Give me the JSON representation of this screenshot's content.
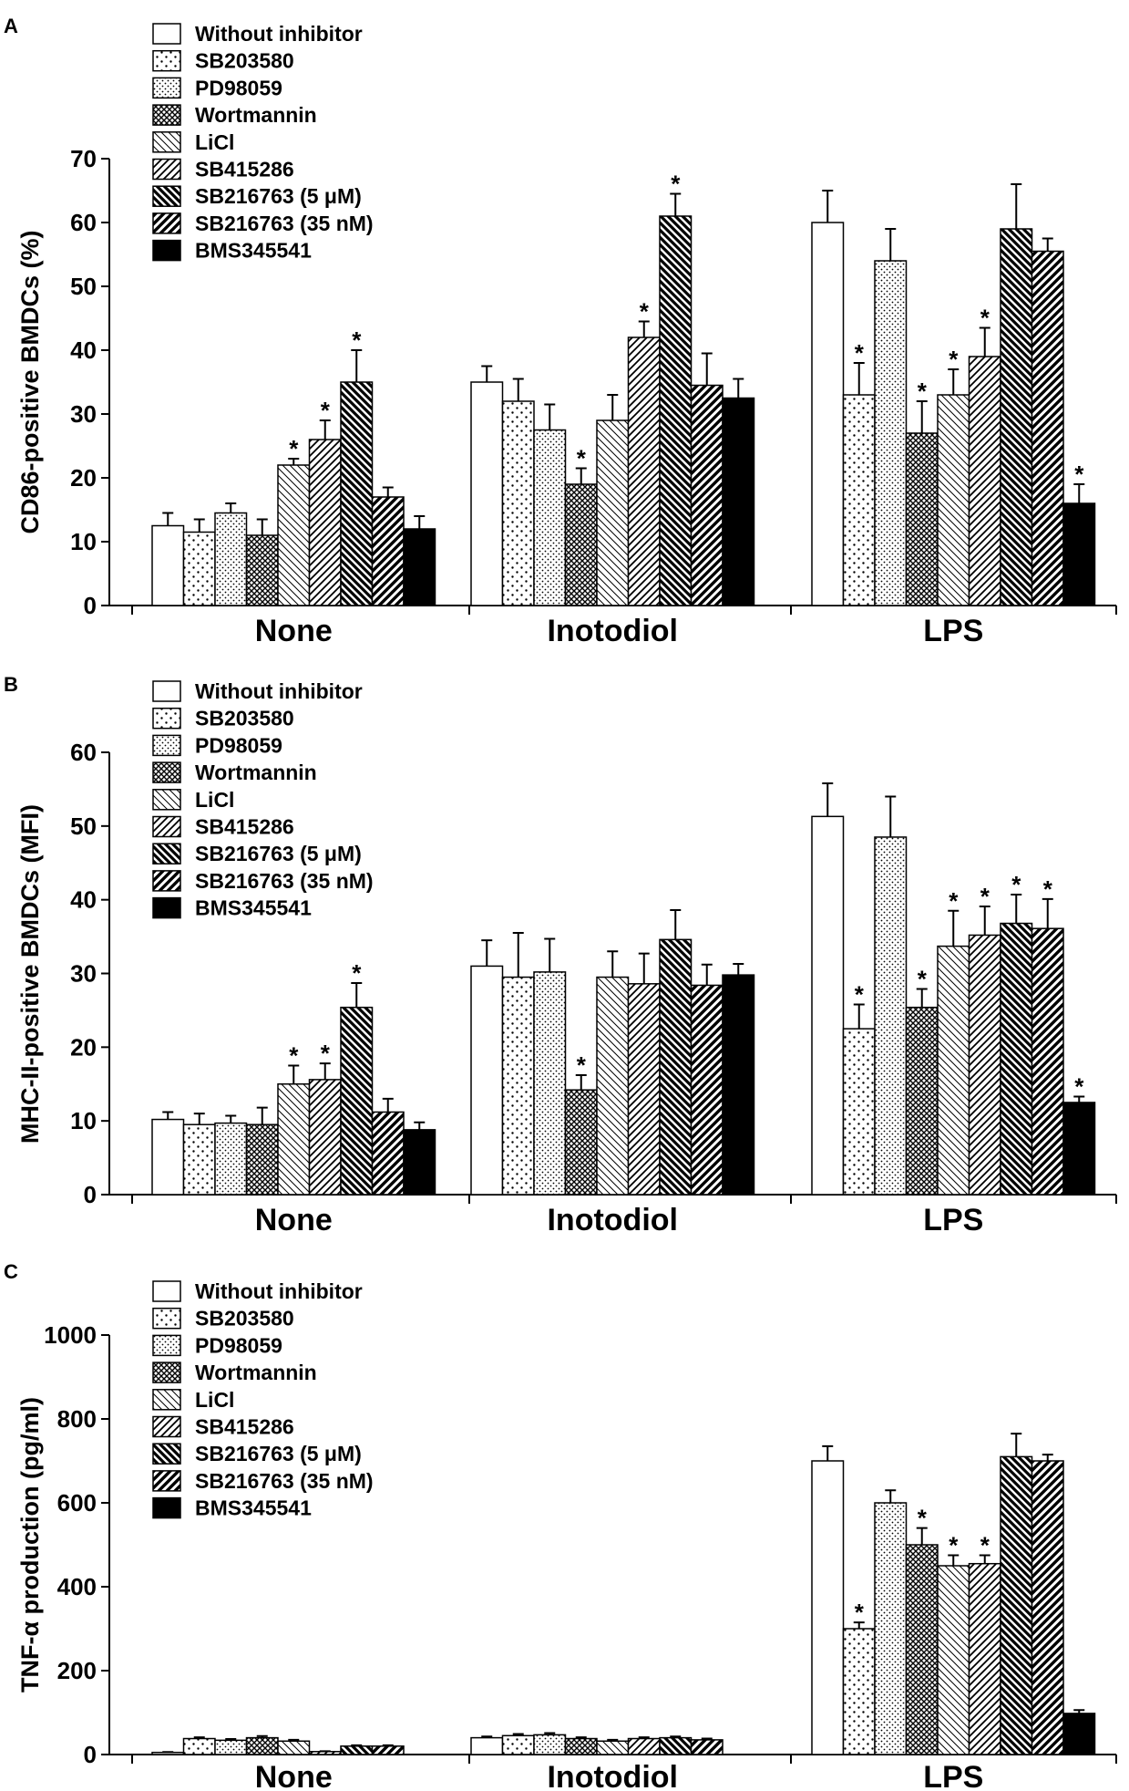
{
  "chart_data": [
    {
      "type": "bar",
      "panel": "A",
      "ylabel": "CD86-positive BMDCs (%)",
      "ylim": [
        0,
        70
      ],
      "yticks": [
        0,
        10,
        20,
        30,
        40,
        50,
        60,
        70
      ],
      "categories": [
        "None",
        "Inotodiol",
        "LPS"
      ],
      "series": [
        {
          "name": "Without inhibitor",
          "values": [
            12.5,
            35,
            60
          ],
          "errors": [
            2,
            2.5,
            5
          ],
          "sig": [
            false,
            false,
            false
          ]
        },
        {
          "name": "SB203580",
          "values": [
            11.5,
            32,
            33
          ],
          "errors": [
            2,
            3.5,
            5
          ],
          "sig": [
            false,
            false,
            true
          ]
        },
        {
          "name": "PD98059",
          "values": [
            14.5,
            27.5,
            54
          ],
          "errors": [
            1.5,
            4,
            5
          ],
          "sig": [
            false,
            false,
            false
          ]
        },
        {
          "name": "Wortmannin",
          "values": [
            11,
            19,
            27
          ],
          "errors": [
            2.5,
            2.5,
            5
          ],
          "sig": [
            false,
            true,
            true
          ]
        },
        {
          "name": "LiCl",
          "values": [
            22,
            29,
            33
          ],
          "errors": [
            1,
            4,
            4
          ],
          "sig": [
            true,
            false,
            true
          ]
        },
        {
          "name": "SB415286",
          "values": [
            26,
            42,
            39
          ],
          "errors": [
            3,
            2.5,
            4.5
          ],
          "sig": [
            true,
            true,
            true
          ]
        },
        {
          "name": "SB216763 (5 μM)",
          "values": [
            35,
            61,
            59
          ],
          "errors": [
            5,
            3.5,
            7
          ],
          "sig": [
            true,
            true,
            false
          ]
        },
        {
          "name": "SB216763 (35 nM)",
          "values": [
            17,
            34.5,
            55.5
          ],
          "errors": [
            1.5,
            5,
            2
          ],
          "sig": [
            false,
            false,
            false
          ]
        },
        {
          "name": "BMS345541",
          "values": [
            12,
            32.5,
            16
          ],
          "errors": [
            2,
            3,
            3
          ],
          "sig": [
            false,
            false,
            true
          ]
        }
      ]
    },
    {
      "type": "bar",
      "panel": "B",
      "ylabel": "MHC-II-positive BMDCs (MFI)",
      "ylim": [
        0,
        60
      ],
      "yticks": [
        0,
        10,
        20,
        30,
        40,
        50,
        60
      ],
      "categories": [
        "None",
        "Inotodiol",
        "LPS"
      ],
      "series": [
        {
          "name": "Without inhibitor",
          "values": [
            10.2,
            31,
            51.3
          ],
          "errors": [
            1,
            3.5,
            4.5
          ],
          "sig": [
            false,
            false,
            false
          ]
        },
        {
          "name": "SB203580",
          "values": [
            9.5,
            29.5,
            22.5
          ],
          "errors": [
            1.5,
            6,
            3.3
          ],
          "sig": [
            false,
            false,
            true
          ]
        },
        {
          "name": "PD98059",
          "values": [
            9.7,
            30.2,
            48.5
          ],
          "errors": [
            1,
            4.5,
            5.5
          ],
          "sig": [
            false,
            false,
            false
          ]
        },
        {
          "name": "Wortmannin",
          "values": [
            9.5,
            14.2,
            25.4
          ],
          "errors": [
            2.3,
            2,
            2.5
          ],
          "sig": [
            false,
            true,
            true
          ]
        },
        {
          "name": "LiCl",
          "values": [
            15,
            29.5,
            33.7
          ],
          "errors": [
            2.5,
            3.5,
            4.8
          ],
          "sig": [
            true,
            false,
            true
          ]
        },
        {
          "name": "SB415286",
          "values": [
            15.6,
            28.6,
            35.2
          ],
          "errors": [
            2.2,
            4.1,
            3.9
          ],
          "sig": [
            true,
            false,
            true
          ]
        },
        {
          "name": "SB216763 (5 μM)",
          "values": [
            25.4,
            34.6,
            36.8
          ],
          "errors": [
            3.3,
            4,
            3.9
          ],
          "sig": [
            true,
            false,
            true
          ]
        },
        {
          "name": "SB216763 (35 nM)",
          "values": [
            11.2,
            28.4,
            36.1
          ],
          "errors": [
            1.8,
            2.8,
            4
          ],
          "sig": [
            false,
            false,
            true
          ]
        },
        {
          "name": "BMS345541",
          "values": [
            8.8,
            29.8,
            12.5
          ],
          "errors": [
            1,
            1.5,
            0.8
          ],
          "sig": [
            false,
            false,
            true
          ]
        }
      ]
    },
    {
      "type": "bar",
      "panel": "C",
      "ylabel": "TNF-α production (pg/ml)",
      "ylim": [
        0,
        1000
      ],
      "yticks": [
        0,
        200,
        400,
        600,
        800,
        1000
      ],
      "categories": [
        "None",
        "Inotodiol",
        "LPS"
      ],
      "series": [
        {
          "name": "Without inhibitor",
          "values": [
            5,
            40,
            700
          ],
          "errors": [
            1,
            3,
            35
          ],
          "sig": [
            false,
            false,
            false
          ]
        },
        {
          "name": "SB203580",
          "values": [
            38,
            45,
            300
          ],
          "errors": [
            3,
            4,
            15
          ],
          "sig": [
            false,
            false,
            true
          ]
        },
        {
          "name": "PD98059",
          "values": [
            34,
            47,
            600
          ],
          "errors": [
            3,
            4,
            30
          ],
          "sig": [
            false,
            false,
            false
          ]
        },
        {
          "name": "Wortmannin",
          "values": [
            40,
            38,
            500
          ],
          "errors": [
            4,
            3,
            40
          ],
          "sig": [
            false,
            false,
            true
          ]
        },
        {
          "name": "LiCl",
          "values": [
            32,
            32,
            450
          ],
          "errors": [
            3,
            3,
            25
          ],
          "sig": [
            false,
            false,
            true
          ]
        },
        {
          "name": "SB415286",
          "values": [
            7,
            38,
            455
          ],
          "errors": [
            1,
            3,
            20
          ],
          "sig": [
            false,
            false,
            true
          ]
        },
        {
          "name": "SB216763 (5 μM)",
          "values": [
            20,
            40,
            710
          ],
          "errors": [
            2,
            3,
            55
          ],
          "sig": [
            false,
            false,
            false
          ]
        },
        {
          "name": "SB216763 (35 nM)",
          "values": [
            20,
            35,
            700
          ],
          "errors": [
            2,
            3,
            15
          ],
          "sig": [
            false,
            false,
            false
          ]
        },
        {
          "name": "BMS345541",
          "values": [
            0,
            0,
            98
          ],
          "errors": [
            0,
            0,
            8
          ],
          "sig": [
            false,
            false,
            false
          ]
        }
      ]
    }
  ],
  "significance_symbol": "*",
  "colors": {
    "ink": "#000000",
    "paper": "#ffffff"
  }
}
